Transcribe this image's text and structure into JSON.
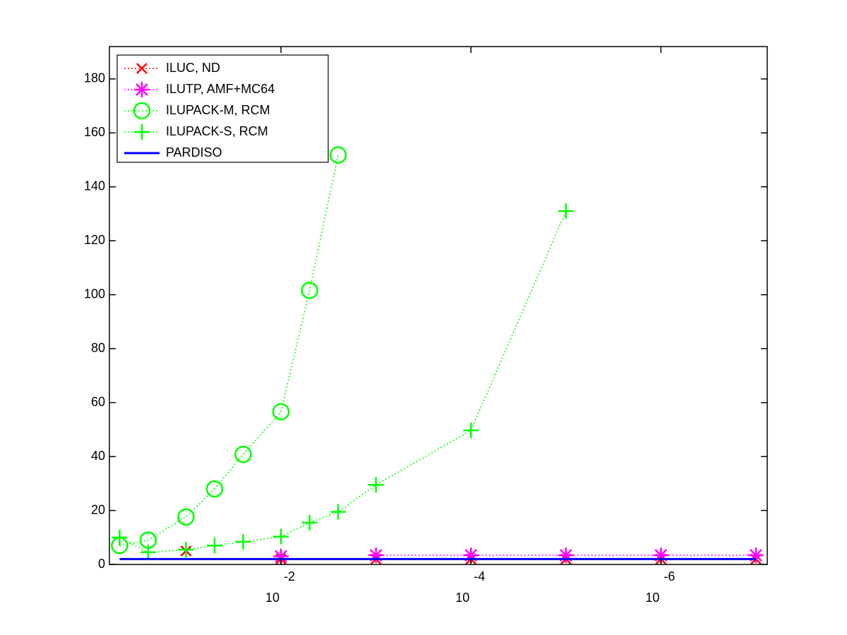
{
  "chart_data": {
    "type": "line",
    "x": [
      0.5,
      0.25,
      0.1,
      0.05,
      0.025,
      0.01,
      0.005,
      0.0025,
      0.001,
      0.0001,
      1e-05,
      1e-06,
      1e-07
    ],
    "xscale": "log",
    "xlim": [
      0.64,
      7.6e-08
    ],
    "xticks": [
      {
        "value": 0.01,
        "label": "10",
        "exponent": "-2"
      },
      {
        "value": 0.0001,
        "label": "10",
        "exponent": "-4"
      },
      {
        "value": 1e-06,
        "label": "10",
        "exponent": "-6"
      }
    ],
    "ylim": [
      0,
      192
    ],
    "yticks": [
      0,
      20,
      40,
      60,
      80,
      100,
      120,
      140,
      160,
      180
    ],
    "legend": "upper left",
    "series": [
      {
        "name": "ILUC,  ND",
        "color": "#ff0000",
        "marker": "x",
        "line_style": "dotted",
        "values": [
          null,
          null,
          5,
          null,
          null,
          2,
          null,
          null,
          2,
          2,
          2,
          2,
          2
        ]
      },
      {
        "name": "ILUTP, AMF+MC64",
        "color": "#ff00ff",
        "marker": "asterisk",
        "line_style": "dotted",
        "values": [
          null,
          null,
          null,
          null,
          null,
          3,
          null,
          null,
          3.4,
          3.4,
          3.4,
          3.4,
          3.4
        ]
      },
      {
        "name": "ILUPACK-M, RCM",
        "color": "#00ff00",
        "marker": "circle",
        "line_style": "dotted",
        "values": [
          7,
          9,
          17.6,
          28,
          40.8,
          56.6,
          101.6,
          151.8,
          null,
          null,
          null,
          null,
          null
        ]
      },
      {
        "name": "ILUPACK-S, RCM",
        "color": "#00ff00",
        "marker": "plus",
        "line_style": "dotted",
        "values": [
          10,
          4.5,
          5.5,
          7,
          8.4,
          10.3,
          15.5,
          19.5,
          29.5,
          49.7,
          131,
          null,
          null
        ]
      },
      {
        "name": "PARDISO",
        "color": "#0000ff",
        "marker": "none",
        "line_style": "solid",
        "values": [
          2,
          2,
          2,
          2,
          2,
          2,
          2,
          2,
          2,
          2,
          2,
          2,
          2
        ]
      }
    ]
  }
}
